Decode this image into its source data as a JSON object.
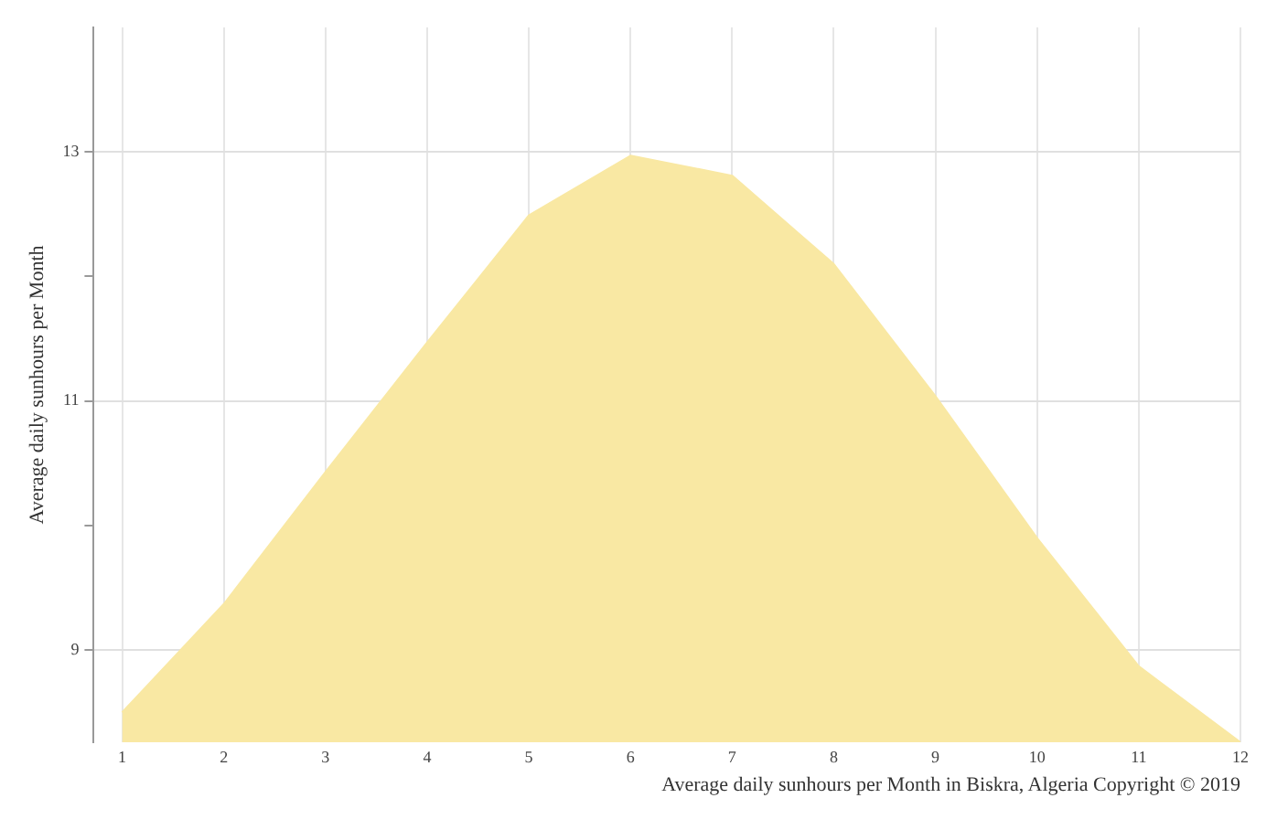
{
  "chart_data": {
    "type": "area",
    "xlabel": "Average daily sunhours per Month in Biskra, Algeria Copyright © 2019",
    "ylabel": "Average daily sunhours per Month",
    "x": [
      1,
      2,
      3,
      4,
      5,
      6,
      7,
      8,
      9,
      10,
      11,
      12
    ],
    "series": [
      {
        "color": "#f9e8a3",
        "values": [
          8.5,
          9.37,
          10.43,
          11.47,
          12.49,
          12.97,
          12.81,
          12.1,
          11.04,
          9.9,
          8.87,
          8.26
        ]
      }
    ],
    "xlim": [
      0.72,
      12
    ],
    "xticks": [
      1,
      2,
      3,
      4,
      5,
      6,
      7,
      8,
      9,
      10,
      11,
      12
    ],
    "ylim": [
      8.26,
      14
    ],
    "yticks": [
      9,
      {
        "value": 10,
        "label": null
      },
      11,
      {
        "value": 12,
        "label": null
      },
      13
    ],
    "grid": true,
    "legend": false,
    "marker": "none"
  }
}
